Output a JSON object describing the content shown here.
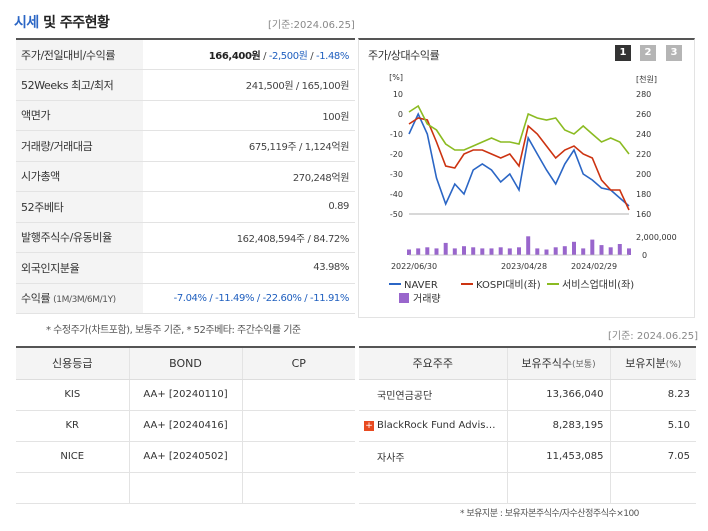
{
  "header": {
    "title_accent": "시세",
    "title_rest": " 및 주주현황",
    "base_date": "[기준:2024.06.25]"
  },
  "info_rows": [
    {
      "label": "주가/전일대비/수익률",
      "v1": "166,400원",
      "sep1": " / ",
      "v2": "-2,500원",
      "sep2": " / ",
      "v3": "-1.48%"
    },
    {
      "label": "52Weeks 최고/최저",
      "value": "241,500원 / 165,100원"
    },
    {
      "label": "액면가",
      "value": "100원"
    },
    {
      "label": "거래량/거래대금",
      "value": "675,119주 / 1,124억원"
    },
    {
      "label": "시가총액",
      "value": "270,248억원"
    },
    {
      "label": "52주베타",
      "value": "0.89"
    },
    {
      "label": "발행주식수/유동비율",
      "value": "162,408,594주 / 84.72%"
    },
    {
      "label": "외국인지분율",
      "value": "43.98%"
    },
    {
      "label": "수익률",
      "label_sub": "(1M/3M/6M/1Y)",
      "value": "-7.04% / -11.49% / -22.60% / -11.91%"
    }
  ],
  "info_note": "* 수정주가(차트포함), 보통주 기준, * 52주베타: 주간수익률 기준",
  "chart_panel": {
    "label": "주가/상대수익률",
    "tabs": [
      "1",
      "2",
      "3"
    ],
    "colors": {
      "tab_active": "#333333",
      "tab_inactive": "#b5b5b5"
    }
  },
  "chart_data": {
    "type": "line",
    "title": "주가/상대수익률",
    "left_axis_unit": "[%]",
    "right_axis_unit": "[천원]",
    "left_ticks": [
      "10",
      "0",
      "-10",
      "-20",
      "-30",
      "-40",
      "-50"
    ],
    "right_ticks": [
      "280",
      "260",
      "240",
      "220",
      "200",
      "180",
      "160"
    ],
    "volume_ticks": [
      "2,000,000",
      "0"
    ],
    "ylim_left": [
      -50,
      10
    ],
    "ylim_right": [
      160,
      280
    ],
    "x_labels": [
      "2022/06/30",
      "2023/04/28",
      "2024/02/29"
    ],
    "series": [
      {
        "name": "NAVER",
        "color": "#2b66c5",
        "axis": "left",
        "values": [
          -10,
          0,
          -10,
          -32,
          -45,
          -35,
          -40,
          -28,
          -25,
          -28,
          -34,
          -30,
          -38,
          -12,
          -20,
          -28,
          -35,
          -25,
          -18,
          -30,
          -33,
          -37,
          -38,
          -42,
          -46
        ]
      },
      {
        "name": "KOSPI대비(좌)",
        "color": "#cc3311",
        "axis": "left",
        "values": [
          -5,
          -2,
          -3,
          -14,
          -26,
          -27,
          -20,
          -18,
          -18,
          -20,
          -22,
          -20,
          -26,
          -6,
          -10,
          -16,
          -22,
          -18,
          -16,
          -20,
          -22,
          -33,
          -38,
          -38,
          -48
        ]
      },
      {
        "name": "서비스업대비(좌)",
        "color": "#8bbb22",
        "axis": "left",
        "values": [
          1,
          4,
          -5,
          -8,
          -15,
          -18,
          -18,
          -16,
          -14,
          -12,
          -14,
          -14,
          -15,
          0,
          -2,
          -3,
          -2,
          -8,
          -10,
          -6,
          -10,
          -14,
          -12,
          -14,
          -20
        ]
      }
    ],
    "volume": {
      "name": "거래량",
      "color": "#9966cc",
      "values": [
        0.25,
        0.3,
        0.35,
        0.3,
        0.55,
        0.3,
        0.4,
        0.35,
        0.3,
        0.3,
        0.35,
        0.3,
        0.35,
        0.85,
        0.3,
        0.25,
        0.35,
        0.4,
        0.6,
        0.3,
        0.7,
        0.45,
        0.35,
        0.5,
        0.3
      ]
    }
  },
  "bottom_base_date": "[기준: 2024.06.25]",
  "credit": {
    "headers": [
      "신용등급",
      "BOND",
      "CP"
    ],
    "rows": [
      [
        "KIS",
        "AA+ [20240110]",
        ""
      ],
      [
        "KR",
        "AA+ [20240416]",
        ""
      ],
      [
        "NICE",
        "AA+ [20240502]",
        ""
      ],
      [
        "",
        "",
        ""
      ]
    ]
  },
  "holders": {
    "headers": [
      "주요주주",
      "보유주식수",
      "(보통)",
      "보유지분",
      "(%)"
    ],
    "rows": [
      {
        "name": "국민연금공단",
        "shares": "13,366,040",
        "pct": "8.23",
        "expand": ""
      },
      {
        "name": "BlackRock Fund Advis…",
        "shares": "8,283,195",
        "pct": "5.10",
        "expand": "+"
      },
      {
        "name": "자사주",
        "shares": "11,453,085",
        "pct": "7.05",
        "expand": ""
      },
      {
        "name": "",
        "shares": "",
        "pct": "",
        "expand": ""
      }
    ],
    "note": "* 보유지분 : 보유자본주식수/자수산정주식수×100"
  }
}
